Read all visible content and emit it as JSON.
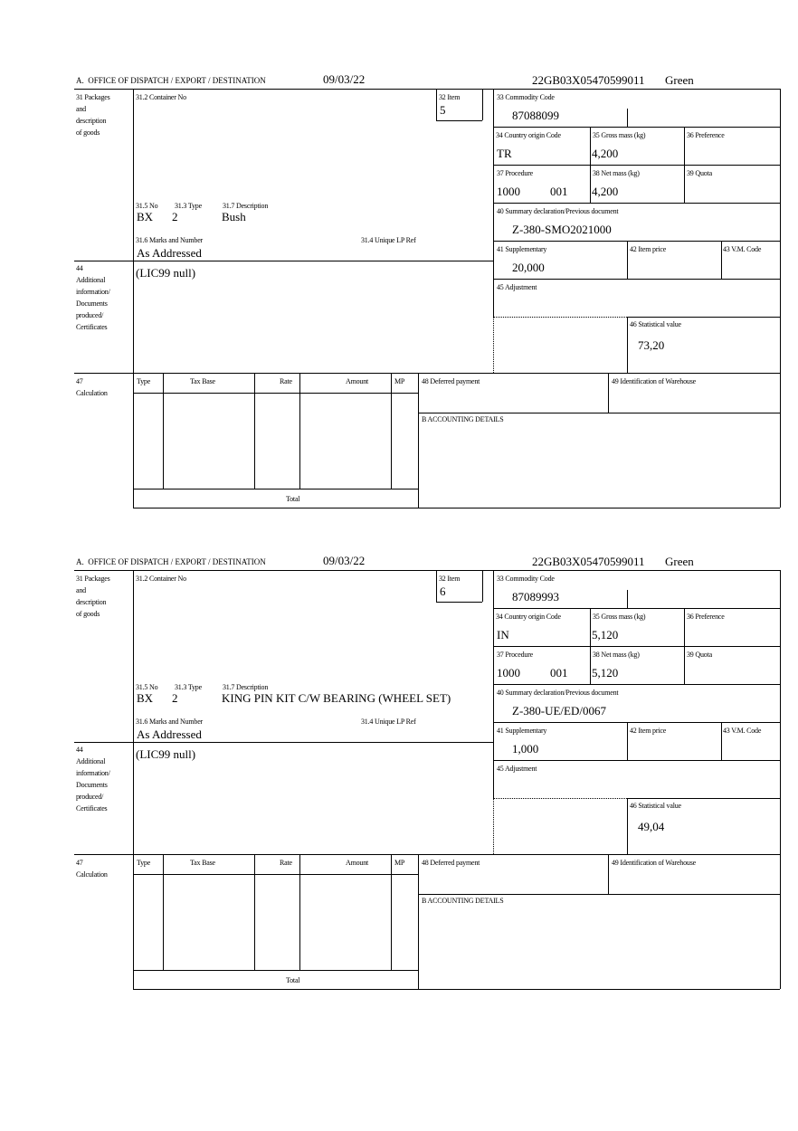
{
  "header_label": "A.  OFFICE OF DISPATCH / EXPORT / DESTINATION",
  "labels": {
    "packages": [
      "31 Packages",
      "and",
      "description",
      "of goods"
    ],
    "container_no": "31.2 Container No",
    "item": "32 Item",
    "no": "31.5 No",
    "type": "31.3 Type",
    "description": "31.7 Description",
    "marks": "31.6 Marks and Number",
    "unique_lp_ref": "31.4 Unique LP Ref",
    "commodity_code": "33 Commodity Code",
    "country_origin": "34 Country origin Code",
    "gross_mass": "35 Gross mass (kg)",
    "preference": "36 Preference",
    "procedure": "37 Procedure",
    "net_mass": "38 Net mass (kg)",
    "quota": "39 Quota",
    "summary_declaration": "40 Summary declaration/Previous document",
    "supplementary": "41 Supplementary",
    "item_price": "42 Item price",
    "vm_code": "43 V.M. Code",
    "adjustment": "45 Adjustment",
    "statistical_value": "46 Statistical value",
    "additional_info": [
      "44",
      "Additional",
      "information/",
      "Documents",
      "produced/",
      "Certificates"
    ],
    "calculation": [
      "47",
      "Calculation"
    ],
    "calc_columns": [
      "Type",
      "Tax Base",
      "Rate",
      "Amount",
      "MP"
    ],
    "total": "Total",
    "deferred_payment": "48 Deferred payment",
    "warehouse": "49 Identification of Warehouse",
    "accounting": "B ACCOUNTING DETAILS"
  },
  "blocks": [
    {
      "date": "09/03/22",
      "reference": "22GB03X05470599011",
      "route": "Green",
      "item": "5",
      "no": "BX",
      "type": "2",
      "description": "Bush",
      "marks": "As Addressed",
      "commodity_code": "87088099",
      "country_origin": "TR",
      "gross_mass": "4,200",
      "procedure": "1000",
      "procedure_sub": "001",
      "net_mass": "4,200",
      "summary_declaration": "Z-380-SMO2021000",
      "supplementary": "20,000",
      "statistical_value": "73,20",
      "additional_info": "(LIC99 null)"
    },
    {
      "date": "09/03/22",
      "reference": "22GB03X05470599011",
      "route": "Green",
      "item": "6",
      "no": "BX",
      "type": "2",
      "description": "KING PIN KIT C/W BEARING (WHEEL SET)",
      "marks": "As Addressed",
      "commodity_code": "87089993",
      "country_origin": "IN",
      "gross_mass": "5,120",
      "procedure": "1000",
      "procedure_sub": "001",
      "net_mass": "5,120",
      "summary_declaration": "Z-380-UE/ED/0067",
      "supplementary": "1,000",
      "statistical_value": "49,04",
      "additional_info": "(LIC99 null)"
    }
  ]
}
